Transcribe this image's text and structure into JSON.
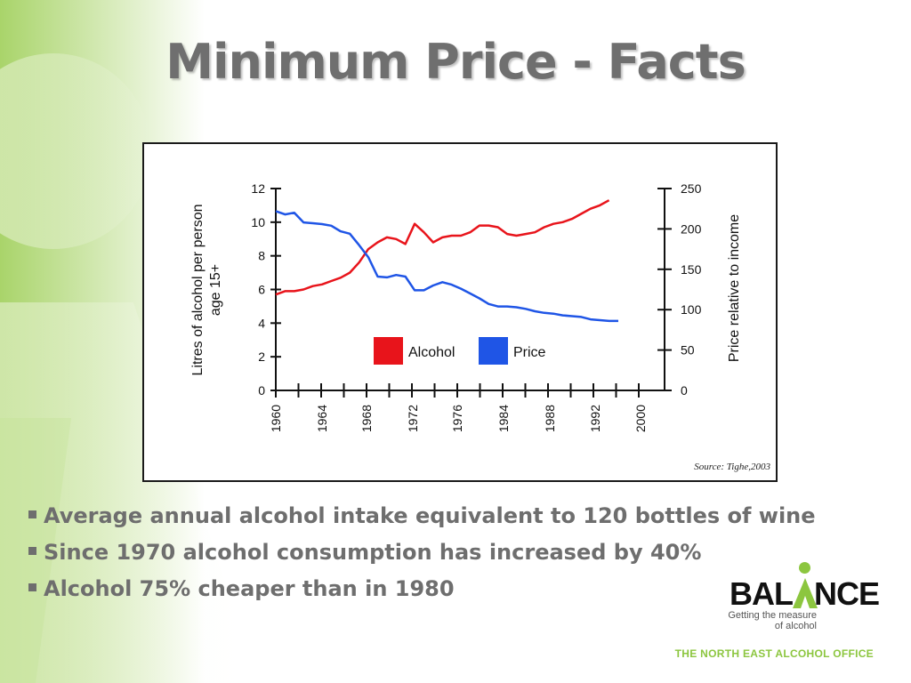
{
  "slide": {
    "title": "Minimum Price - Facts",
    "bullets": [
      "Average annual alcohol intake equivalent to 120 bottles of wine",
      "Since 1970 alcohol consumption has increased by 40%",
      "Alcohol 75% cheaper than in 1980"
    ],
    "logo": {
      "name": "BALANCE",
      "tagline": "Getting the measure of alcohol"
    },
    "footer": "THE NORTH EAST ALCOHOL OFFICE",
    "colors": {
      "title": "#6f6f6f",
      "bullet_text": "#6e6e6e",
      "accent_green": "#8cc63f"
    }
  },
  "chart_data": {
    "type": "line",
    "title": "",
    "xlabel": "",
    "ylabel_left": "Litres of alcohol per person age 15+",
    "ylabel_right": "Price relative to income",
    "xlim": [
      1960,
      2002
    ],
    "ylim_left": [
      0,
      12
    ],
    "ylim_right": [
      0,
      250
    ],
    "x_ticks": [
      "1960",
      "1964",
      "1968",
      "1972",
      "1976",
      "1984",
      "1988",
      "1992",
      "2000"
    ],
    "y_ticks_left": [
      "0",
      "2",
      "4",
      "6",
      "8",
      "10",
      "12"
    ],
    "y_ticks_right": [
      "0",
      "50",
      "100",
      "150",
      "200",
      "250"
    ],
    "grid": false,
    "legend": "center",
    "source": "Source: Tighe,2003",
    "series": [
      {
        "name": "Alcohol",
        "axis": "left",
        "color": "#e8141b",
        "points": [
          [
            1960,
            5.7
          ],
          [
            1961,
            5.9
          ],
          [
            1962,
            5.9
          ],
          [
            1963,
            6.0
          ],
          [
            1964,
            6.2
          ],
          [
            1965,
            6.3
          ],
          [
            1966,
            6.5
          ],
          [
            1967,
            6.7
          ],
          [
            1968,
            7.0
          ],
          [
            1969,
            7.6
          ],
          [
            1970,
            8.4
          ],
          [
            1971,
            8.8
          ],
          [
            1972,
            9.1
          ],
          [
            1973,
            9.0
          ],
          [
            1974,
            8.7
          ],
          [
            1975,
            9.9
          ],
          [
            1976,
            9.4
          ],
          [
            1977,
            8.8
          ],
          [
            1978,
            9.1
          ],
          [
            1979,
            9.2
          ],
          [
            1980,
            9.2
          ],
          [
            1981,
            9.4
          ],
          [
            1982,
            9.8
          ],
          [
            1983,
            9.8
          ],
          [
            1984,
            9.7
          ],
          [
            1985,
            9.3
          ],
          [
            1986,
            9.2
          ],
          [
            1987,
            9.3
          ],
          [
            1988,
            9.4
          ],
          [
            1989,
            9.7
          ],
          [
            1990,
            9.9
          ],
          [
            1991,
            10.0
          ],
          [
            1992,
            10.2
          ],
          [
            1993,
            10.5
          ],
          [
            1994,
            10.8
          ],
          [
            1995,
            11.0
          ],
          [
            1996,
            11.3
          ]
        ]
      },
      {
        "name": "Price",
        "axis": "right",
        "color": "#1f55e6",
        "points": [
          [
            1960,
            222
          ],
          [
            1961,
            218
          ],
          [
            1962,
            220
          ],
          [
            1963,
            208
          ],
          [
            1964,
            207
          ],
          [
            1965,
            206
          ],
          [
            1966,
            204
          ],
          [
            1967,
            197
          ],
          [
            1968,
            194
          ],
          [
            1969,
            180
          ],
          [
            1970,
            165
          ],
          [
            1971,
            141
          ],
          [
            1972,
            140
          ],
          [
            1973,
            143
          ],
          [
            1974,
            141
          ],
          [
            1975,
            124
          ],
          [
            1976,
            124
          ],
          [
            1977,
            130
          ],
          [
            1978,
            134
          ],
          [
            1979,
            131
          ],
          [
            1980,
            126
          ],
          [
            1981,
            120
          ],
          [
            1982,
            114
          ],
          [
            1983,
            107
          ],
          [
            1984,
            104
          ],
          [
            1985,
            104
          ],
          [
            1986,
            103
          ],
          [
            1987,
            101
          ],
          [
            1988,
            98
          ],
          [
            1989,
            96
          ],
          [
            1990,
            95
          ],
          [
            1991,
            93
          ],
          [
            1992,
            92
          ],
          [
            1993,
            91
          ],
          [
            1994,
            88
          ],
          [
            1995,
            87
          ],
          [
            1996,
            86
          ],
          [
            1997,
            86
          ]
        ]
      }
    ]
  }
}
